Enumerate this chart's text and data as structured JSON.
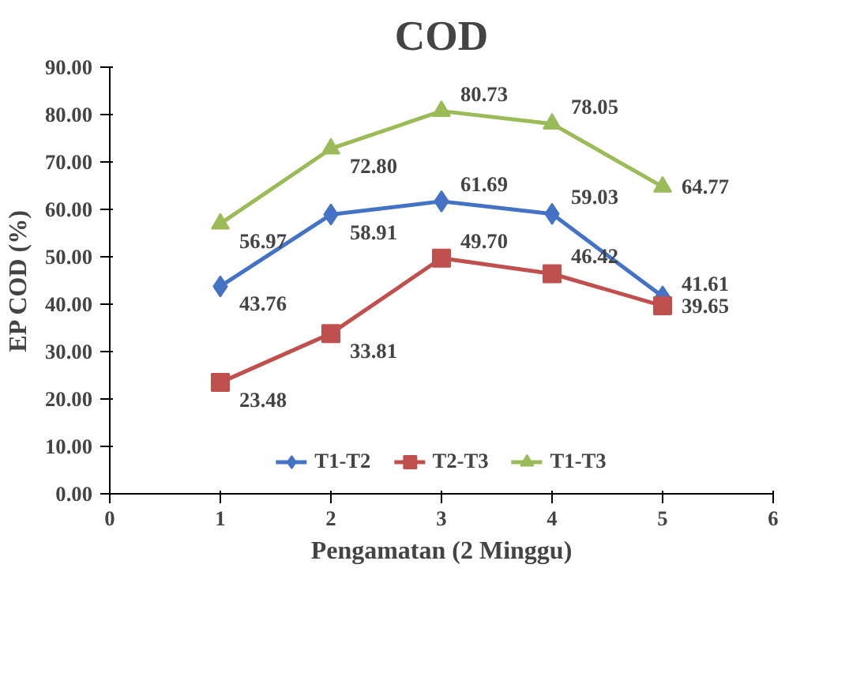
{
  "chart_data": {
    "type": "line",
    "title": "COD",
    "xlabel": "Pengamatan (2 Minggu)",
    "ylabel": "EP COD (%)",
    "x": [
      1,
      2,
      3,
      4,
      5
    ],
    "xlim": [
      0,
      6
    ],
    "xticks": [
      0,
      1,
      2,
      3,
      4,
      5,
      6
    ],
    "ylim": [
      0,
      90
    ],
    "yticks": [
      {
        "value": 0,
        "label": "0.00"
      },
      {
        "value": 10,
        "label": "10.00"
      },
      {
        "value": 20,
        "label": "20.00"
      },
      {
        "value": 30,
        "label": "30.00"
      },
      {
        "value": 40,
        "label": "40.00"
      },
      {
        "value": 50,
        "label": "50.00"
      },
      {
        "value": 60,
        "label": "60.00"
      },
      {
        "value": 70,
        "label": "70.00"
      },
      {
        "value": 80,
        "label": "80.00"
      },
      {
        "value": 90,
        "label": "90.00"
      }
    ],
    "grid": false,
    "legend": "bottom",
    "line_style": "solid",
    "series": [
      {
        "name": "T1-T2",
        "color": "#4472c4",
        "marker": "diamond",
        "values": [
          43.76,
          58.91,
          61.69,
          59.03,
          41.61
        ],
        "value_labels": [
          "43.76",
          "58.91",
          "61.69",
          "59.03",
          "41.61"
        ]
      },
      {
        "name": "T2-T3",
        "color": "#c0504d",
        "marker": "square",
        "values": [
          23.48,
          33.81,
          49.7,
          46.42,
          39.65
        ],
        "value_labels": [
          "23.48",
          "33.81",
          "49.70",
          "46.42",
          "39.65"
        ]
      },
      {
        "name": "T1-T3",
        "color": "#9bbb59",
        "marker": "triangle",
        "values": [
          56.97,
          72.8,
          80.73,
          78.05,
          64.77
        ],
        "value_labels": [
          "56.97",
          "72.80",
          "80.73",
          "78.05",
          "64.77"
        ]
      }
    ]
  }
}
